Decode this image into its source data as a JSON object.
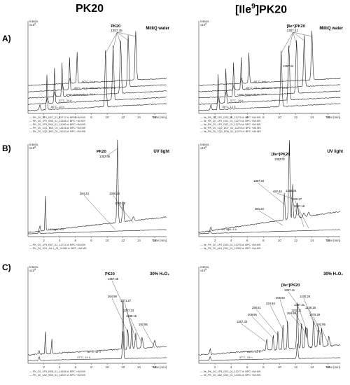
{
  "column_titles": {
    "left": "PK20",
    "right_main": "[Ile",
    "right_sup": "9",
    "right_end": "]PK20"
  },
  "row_labels": [
    "A)",
    "B)",
    "C)"
  ],
  "chart_data": [
    {
      "id": "A-left",
      "type": "line",
      "condition_label": "MilliQ water",
      "ylabel": "Intens.",
      "yexp": "x10",
      "yexp_sup": "8",
      "xlabel": "Time [min]",
      "xticks": [
        2,
        4,
        6,
        8,
        10,
        12,
        14,
        16
      ],
      "xlim": [
        0,
        17.5
      ],
      "peak_label": "PK20",
      "peak_mass": "1357.45",
      "traces": [
        "80°C, 12 h",
        "37°C, 24 h",
        "room temperature, 24 h",
        "-80°C, 24 h; defrozen, -20°C, 24 h",
        "-80°C, 24 h"
      ],
      "legend": [
        "— PK_20_1P1_B07_01_11712.d: BPC +All MS",
        "— PK_20_1P2_B05_01_11108.d: BPC +All MS",
        "— PK_20_1P3_B04_01_11090.d: BPC +All MS",
        "— PK_20_1Q1_B03_01_11105.d: BPC +All MS",
        "— PK_20_1Q2_B02_01_11103.d: BPC +All MS"
      ]
    },
    {
      "id": "A-right",
      "type": "line",
      "condition_label": "MilliQ water",
      "ylabel": "Intens.",
      "yexp": "x10",
      "yexp_sup": "8",
      "xlabel": "Time [min]",
      "xticks": [
        2,
        4,
        6,
        8,
        10,
        12,
        14,
        16
      ],
      "xlim": [
        0,
        17.5
      ],
      "peak_label": "[Ile⁹]PK20",
      "peak_mass": "1357.41",
      "extra_mass": "1357.34",
      "traces": [
        "80°C, 12 h",
        "37°C, 24 h",
        "room temperature, 24 h",
        "-80°C, 24 h; defrozen, -20°C, 24 h",
        "-80°C, 24 h"
      ],
      "legend": [
        "— Ile_PK_20_1P2_D03_01_11275.d: BPC +All MS",
        "— Ile_PK_20_1P2_D01_01_11273.d: BPC +All MS",
        "— Ile_PK_20_1P2_D02_01_11274.d: BPC +All MS",
        "— Ile_PK_20_1Q2_D07_01_11278.d: BPC +All MS",
        "— Ile_PK_20_1Q2_D08_01_11279.d: BPC +All MS"
      ]
    },
    {
      "id": "B-left",
      "type": "line",
      "condition_label": "UV light",
      "ylabel": "Intens.",
      "yexp": "x10",
      "yexp_sup": "8",
      "xlabel": "Time [min]",
      "xticks": [
        2,
        4,
        6,
        8,
        10,
        12,
        14,
        16
      ],
      "xlim": [
        0,
        17.5
      ],
      "trace_label": "UV light, 8 h",
      "annotations": [
        {
          "text": "PK20",
          "bold": true,
          "x": 11.3
        },
        {
          "text": "1357.45",
          "x": 11.3
        },
        {
          "text": "384.23",
          "x": 11.0
        },
        {
          "text": "1358.26",
          "x": 12.0
        },
        {
          "text": "1340.25",
          "x": 13.3
        }
      ],
      "legend": [
        "— PK_20_1P3_B07_01_11712.d: BPC +All MS",
        "— PK_20_1R1_A4-1_01_11060.d: BPC +All MS"
      ]
    },
    {
      "id": "B-right",
      "type": "line",
      "condition_label": "UV light",
      "ylabel": "Intens.",
      "yexp": "x10",
      "yexp_sup": "8",
      "xlabel": "Time [min]",
      "xticks": [
        2,
        4,
        6,
        8,
        10,
        12,
        14,
        16
      ],
      "xlim": [
        0,
        17.5
      ],
      "trace_label": "UV light, 8 h",
      "annotations": [
        {
          "text": "[Ile⁹]PK20",
          "bold": true,
          "x": 11.2
        },
        {
          "text": "1357.41",
          "x": 11.2
        },
        {
          "text": "1357.34",
          "x": 10.6
        },
        {
          "text": "497.40",
          "x": 11.6
        },
        {
          "text": "384.23",
          "x": 10.4
        },
        {
          "text": "1358.26",
          "x": 12.2
        },
        {
          "text": "1340.27",
          "x": 13.0
        },
        {
          "text": "1547.18",
          "x": 13.6
        }
      ],
      "legend": [
        "— Ile_PK_20_1P2_D03_01_11275.d: BPC +All MS",
        "— Ile_PK_20_4A1_D01_01_11302.d: BPC +All MS"
      ]
    },
    {
      "id": "C-left",
      "type": "line",
      "condition_label": "30% H₂O₂",
      "ylabel": "Intens.",
      "yexp": "x10",
      "yexp_sup": "8",
      "xlabel": "Time [min]",
      "xticks": [
        2,
        4,
        6,
        8,
        10,
        12,
        14,
        16
      ],
      "xlim": [
        0,
        17.5
      ],
      "traces": [
        "80°C, 12 h",
        "37°C, 24 h"
      ],
      "annotations": [
        {
          "text": "PK20",
          "bold": true,
          "x": 12.0
        },
        {
          "text": "1357.45",
          "x": 12.0
        },
        {
          "text": "264.99",
          "x": 12.6
        },
        {
          "text": "1371.27",
          "x": 13.1
        },
        {
          "text": "1387.23",
          "x": 13.6
        },
        {
          "text": "1238.15",
          "x": 14.4
        },
        {
          "text": "192.95",
          "x": 16.0
        }
      ],
      "legend": [
        "— PK_20_1P3_B09_01_11538.d: BPC +All MS",
        "— PK_20_1A2_B04_01_11537.d: BPC +All MS"
      ]
    },
    {
      "id": "C-right",
      "type": "line",
      "condition_label": "30% H₂O₂",
      "ylabel": "Intens.",
      "yexp": "x10",
      "yexp_sup": "8",
      "xlabel": "Time [min]",
      "xticks": [
        2,
        4,
        6,
        8,
        10,
        12,
        14,
        16
      ],
      "xlim": [
        0,
        17.5
      ],
      "traces": [
        "80°C, 12 h",
        "37°C, 24 h"
      ],
      "annotations": [
        {
          "text": "[Ile⁹]PK20",
          "bold": true,
          "x": 12.2
        },
        {
          "text": "1357.41",
          "x": 12.2
        },
        {
          "text": "206.92",
          "x": 11.0
        },
        {
          "text": "224.94",
          "x": 10.4
        },
        {
          "text": "256.61",
          "x": 9.8
        },
        {
          "text": "208.95",
          "x": 9.2
        },
        {
          "text": "1357.33",
          "x": 8.4
        },
        {
          "text": "264.98",
          "x": 12.7
        },
        {
          "text": "1387.31",
          "x": 13.4
        },
        {
          "text": "1192.11",
          "x": 13.2
        },
        {
          "text": "1435.26",
          "x": 14.2
        },
        {
          "text": "1238.15",
          "x": 14.8
        },
        {
          "text": "1375.29",
          "x": 15.2
        },
        {
          "text": "192.95",
          "x": 16.1
        }
      ],
      "legend": [
        "— Ile_PK_20_1P3_D07_01_11277.d: BPC +All MS",
        "— Ile_PK_20_4A2_D04_01_11301.d: BPC +All MS"
      ]
    }
  ],
  "colors": {
    "line": "#222222",
    "axis": "#555555"
  }
}
